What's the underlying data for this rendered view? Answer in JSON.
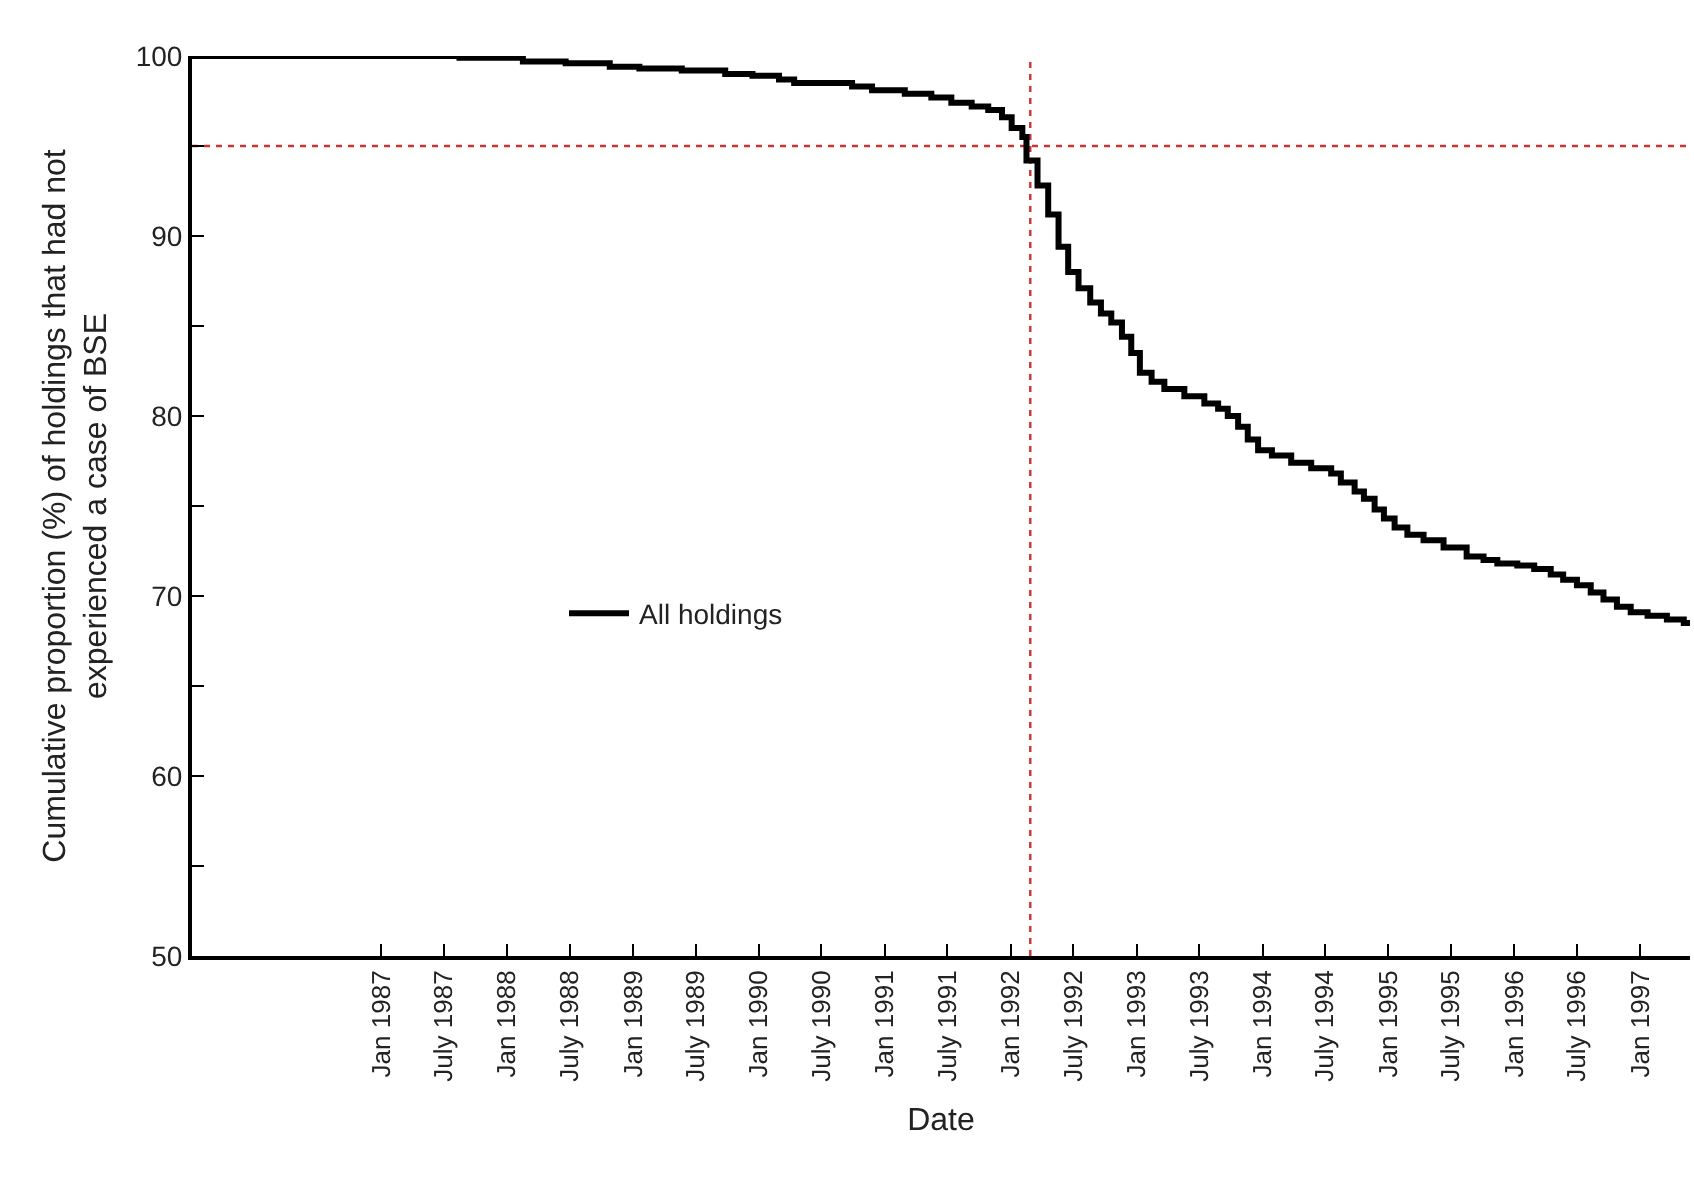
{
  "chart_data": {
    "type": "step",
    "xlabel": "Date",
    "ylabel": "Cumulative proportion (%) of holdings that had not\nexperienced a case of BSE",
    "x": [
      "1985-07-01",
      "1987-08-16",
      "1988-02-16",
      "1988-06-19",
      "1988-10-25",
      "1989-01-19",
      "1989-05-22",
      "1989-09-25",
      "1989-12-13",
      "1990-02-28",
      "1990-04-13",
      "1990-09-28",
      "1990-11-25",
      "1991-02-28",
      "1991-05-16",
      "1991-07-13",
      "1991-09-10",
      "1991-10-28",
      "1991-12-07",
      "1992-01-04",
      "1992-02-04",
      "1992-02-16",
      "1992-03-19",
      "1992-04-19",
      "1992-05-19",
      "1992-06-16",
      "1992-07-16",
      "1992-08-19",
      "1992-09-19",
      "1992-10-19",
      "1992-11-19",
      "1992-12-16",
      "1993-01-10",
      "1993-02-13",
      "1993-03-22",
      "1993-05-19",
      "1993-07-16",
      "1993-08-25",
      "1993-09-22",
      "1993-10-22",
      "1993-11-19",
      "1993-12-19",
      "1994-01-28",
      "1994-03-25",
      "1994-05-22",
      "1994-07-19",
      "1994-08-16",
      "1994-09-25",
      "1994-10-22",
      "1994-11-22",
      "1994-12-19",
      "1995-01-19",
      "1995-02-25",
      "1995-04-13",
      "1995-06-10",
      "1995-08-16",
      "1995-10-04",
      "1995-11-13",
      "1996-01-10",
      "1996-02-28",
      "1996-04-16",
      "1996-05-22",
      "1996-07-01",
      "1996-08-10",
      "1996-09-16",
      "1996-10-25",
      "1996-12-04",
      "1997-01-22",
      "1997-03-19",
      "1997-05-07",
      "1997-05-25"
    ],
    "series": [
      {
        "name": "All holdings",
        "color": "#000000",
        "values": [
          100,
          99.9,
          99.7,
          99.6,
          99.4,
          99.3,
          99.2,
          99.0,
          98.9,
          98.7,
          98.5,
          98.3,
          98.1,
          97.9,
          97.7,
          97.4,
          97.2,
          97.0,
          96.6,
          96.0,
          95.5,
          94.2,
          92.8,
          91.2,
          89.4,
          88.0,
          87.1,
          86.3,
          85.7,
          85.2,
          84.4,
          83.5,
          82.4,
          81.9,
          81.5,
          81.1,
          80.7,
          80.4,
          80.0,
          79.4,
          78.7,
          78.1,
          77.8,
          77.4,
          77.1,
          76.8,
          76.3,
          75.8,
          75.4,
          74.8,
          74.3,
          73.8,
          73.4,
          73.1,
          72.7,
          72.2,
          72.0,
          71.8,
          71.7,
          71.5,
          71.2,
          70.9,
          70.6,
          70.2,
          69.8,
          69.4,
          69.1,
          68.9,
          68.7,
          68.5,
          68.5
        ]
      }
    ],
    "xlim": [
      "1985-07-01",
      "1997-05-25"
    ],
    "xticks": [
      {
        "value": "1987-01-01",
        "label": "Jan 1987"
      },
      {
        "value": "1987-07-01",
        "label": "July 1987"
      },
      {
        "value": "1988-01-01",
        "label": "Jan 1988"
      },
      {
        "value": "1988-07-01",
        "label": "July 1988"
      },
      {
        "value": "1989-01-01",
        "label": "Jan 1989"
      },
      {
        "value": "1989-07-01",
        "label": "July 1989"
      },
      {
        "value": "1990-01-01",
        "label": "Jan 1990"
      },
      {
        "value": "1990-07-01",
        "label": "July 1990"
      },
      {
        "value": "1991-01-01",
        "label": "Jan 1991"
      },
      {
        "value": "1991-07-01",
        "label": "July 1991"
      },
      {
        "value": "1992-01-01",
        "label": "Jan 1992"
      },
      {
        "value": "1992-07-01",
        "label": "July 1992"
      },
      {
        "value": "1993-01-01",
        "label": "Jan 1993"
      },
      {
        "value": "1993-07-01",
        "label": "July 1993"
      },
      {
        "value": "1994-01-01",
        "label": "Jan 1994"
      },
      {
        "value": "1994-07-01",
        "label": "July 1994"
      },
      {
        "value": "1995-01-01",
        "label": "Jan 1995"
      },
      {
        "value": "1995-07-01",
        "label": "July 1995"
      },
      {
        "value": "1996-01-01",
        "label": "Jan 1996"
      },
      {
        "value": "1996-07-01",
        "label": "July 1996"
      },
      {
        "value": "1997-01-01",
        "label": "Jan 1997"
      }
    ],
    "ylim": [
      50,
      100
    ],
    "yticks": [
      50,
      {
        "value": 55,
        "label": null
      },
      60,
      {
        "value": 65,
        "label": null
      },
      70,
      {
        "value": 75,
        "label": null
      },
      80,
      {
        "value": 85,
        "label": null
      },
      90,
      {
        "value": 95,
        "label": null
      },
      100
    ],
    "ref_lines": [
      {
        "axis": "y",
        "value": 95,
        "color": "#cc3333",
        "line_style": "dotted"
      },
      {
        "axis": "x",
        "value": "1992-02-27",
        "color": "#cc3333",
        "line_style": "dotted"
      }
    ],
    "grid": false,
    "legend": "center left",
    "marker": "none",
    "line_style": "solid"
  }
}
